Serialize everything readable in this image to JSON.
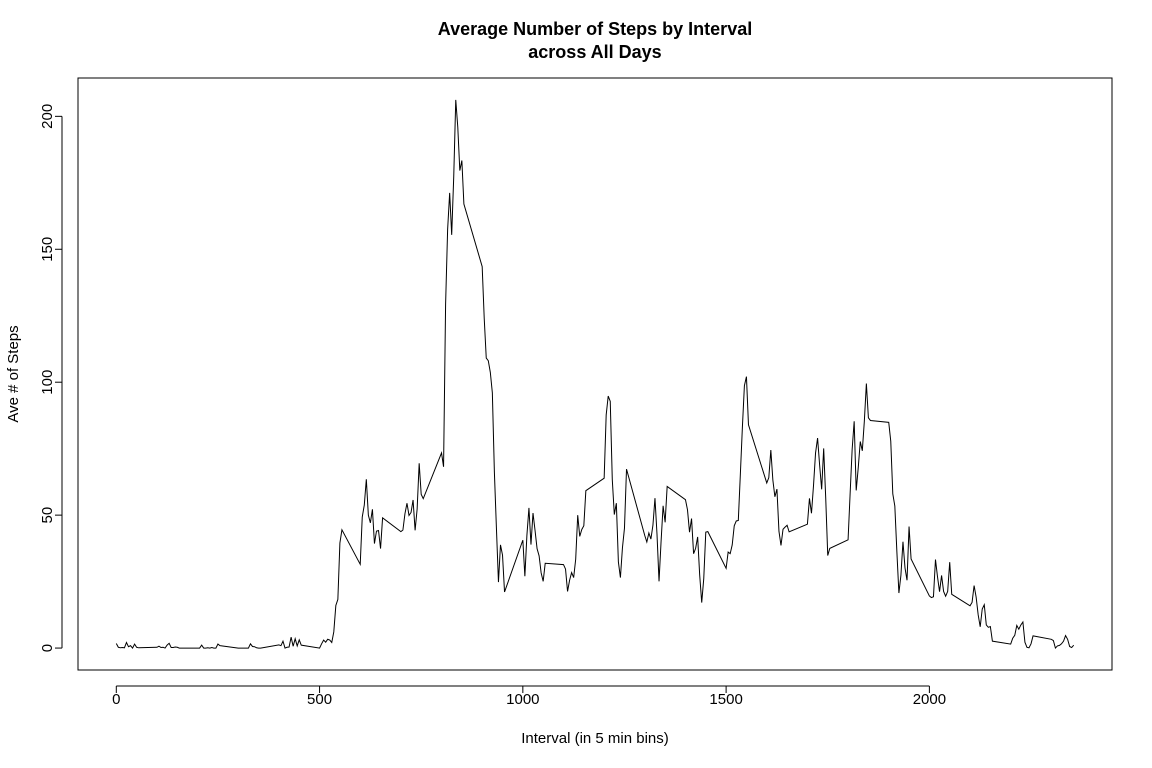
{
  "chart_data": {
    "type": "line",
    "title": [
      "Average Number of Steps by Interval",
      "across All Days"
    ],
    "x_label": "Interval (in 5 min bins)",
    "y_label": "Ave # of Steps",
    "color": "#000000",
    "xlim": [
      -94.2,
      2449.2
    ],
    "ylim": [
      -8.25,
      214.42
    ],
    "xticks": [
      0,
      500,
      1000,
      1500,
      2000
    ],
    "yticks": [
      0,
      50,
      100,
      150,
      200
    ],
    "x": [
      0,
      5,
      10,
      15,
      20,
      25,
      30,
      35,
      40,
      45,
      50,
      55,
      100,
      105,
      110,
      115,
      120,
      125,
      130,
      135,
      140,
      145,
      150,
      155,
      200,
      205,
      210,
      215,
      220,
      225,
      230,
      235,
      240,
      245,
      250,
      255,
      300,
      305,
      310,
      315,
      320,
      325,
      330,
      335,
      340,
      345,
      350,
      355,
      400,
      405,
      410,
      415,
      420,
      425,
      430,
      435,
      440,
      445,
      450,
      455,
      500,
      505,
      510,
      515,
      520,
      525,
      530,
      535,
      540,
      545,
      550,
      555,
      600,
      605,
      610,
      615,
      620,
      625,
      630,
      635,
      640,
      645,
      650,
      655,
      700,
      705,
      710,
      715,
      720,
      725,
      730,
      735,
      740,
      745,
      750,
      755,
      800,
      805,
      810,
      815,
      820,
      825,
      830,
      835,
      840,
      845,
      850,
      855,
      900,
      905,
      910,
      915,
      920,
      925,
      930,
      935,
      940,
      945,
      950,
      955,
      1000,
      1005,
      1010,
      1015,
      1020,
      1025,
      1030,
      1035,
      1040,
      1045,
      1050,
      1055,
      1100,
      1105,
      1110,
      1115,
      1120,
      1125,
      1130,
      1135,
      1140,
      1145,
      1150,
      1155,
      1200,
      1205,
      1210,
      1215,
      1220,
      1225,
      1230,
      1235,
      1240,
      1245,
      1250,
      1255,
      1300,
      1305,
      1310,
      1315,
      1320,
      1325,
      1330,
      1335,
      1340,
      1345,
      1350,
      1355,
      1400,
      1405,
      1410,
      1415,
      1420,
      1425,
      1430,
      1435,
      1440,
      1445,
      1450,
      1455,
      1500,
      1505,
      1510,
      1515,
      1520,
      1525,
      1530,
      1535,
      1540,
      1545,
      1550,
      1555,
      1600,
      1605,
      1610,
      1615,
      1620,
      1625,
      1630,
      1635,
      1640,
      1645,
      1650,
      1655,
      1700,
      1705,
      1710,
      1715,
      1720,
      1725,
      1730,
      1735,
      1740,
      1745,
      1750,
      1755,
      1800,
      1805,
      1810,
      1815,
      1820,
      1825,
      1830,
      1835,
      1840,
      1845,
      1850,
      1855,
      1900,
      1905,
      1910,
      1915,
      1920,
      1925,
      1930,
      1935,
      1940,
      1945,
      1950,
      1955,
      2000,
      2005,
      2010,
      2015,
      2020,
      2025,
      2030,
      2035,
      2040,
      2045,
      2050,
      2055,
      2100,
      2105,
      2110,
      2115,
      2120,
      2125,
      2130,
      2135,
      2140,
      2145,
      2150,
      2155,
      2200,
      2205,
      2210,
      2215,
      2220,
      2225,
      2230,
      2235,
      2240,
      2245,
      2250,
      2255,
      2300,
      2305,
      2310,
      2315,
      2320,
      2325,
      2330,
      2335,
      2340,
      2345,
      2350,
      2355
    ],
    "values": [
      1.7,
      0.3,
      0.1,
      0.2,
      0.1,
      2.1,
      0.5,
      0.9,
      0,
      1.5,
      0.3,
      0.1,
      0.3,
      0.7,
      0.2,
      0.3,
      0,
      1.1,
      1.8,
      0.2,
      0.2,
      0.4,
      0.3,
      0,
      0,
      0,
      1.1,
      0,
      0,
      0.1,
      0,
      0.2,
      0,
      0,
      1.5,
      0.9,
      0,
      0,
      0,
      0,
      0,
      0,
      1.6,
      0.6,
      0.5,
      0.1,
      0,
      0,
      1.2,
      0.9,
      2.6,
      0,
      0.3,
      0.4,
      4.1,
      0.7,
      3.5,
      0.8,
      3.1,
      1.1,
      0,
      1.6,
      3.0,
      2.2,
      3.3,
      3.0,
      2.1,
      6.1,
      16.0,
      18.3,
      39.5,
      44.5,
      31.5,
      49.3,
      53.8,
      63.5,
      50,
      47.1,
      52.2,
      39.3,
      44.0,
      44.2,
      37.4,
      49.0,
      43.8,
      44.4,
      50.5,
      54.5,
      49.9,
      51,
      55.7,
      44.3,
      52.3,
      69.5,
      57.8,
      56.2,
      73.4,
      68.2,
      129.4,
      157.5,
      171.2,
      155.4,
      177.3,
      206.2,
      195.9,
      179.6,
      183.4,
      167,
      143.5,
      124,
      109.1,
      108.1,
      103.7,
      96,
      66.2,
      45.2,
      24.8,
      38.8,
      35,
      21.1,
      40.6,
      27,
      42.4,
      52.7,
      38.9,
      50.8,
      44.3,
      37.4,
      34.7,
      28.3,
      25.1,
      31.9,
      31.4,
      29.7,
      21.3,
      25.5,
      28.4,
      26.5,
      33.4,
      50,
      42,
      44.6,
      46,
      59.2,
      63.9,
      87.7,
      94.8,
      92.8,
      63.4,
      50.2,
      54.5,
      32.4,
      26.5,
      37.7,
      45.1,
      67.3,
      42.3,
      39.9,
      43.3,
      41,
      46.2,
      56.4,
      42.8,
      25.1,
      40,
      53.5,
      47.3,
      60.8,
      55.8,
      52,
      43.6,
      48.7,
      35.5,
      37.5,
      41.8,
      27.5,
      17.1,
      26.1,
      43.6,
      43.8,
      30,
      36.1,
      35.5,
      38.8,
      46,
      47.8,
      48,
      65.3,
      82.9,
      98.7,
      102.1,
      84,
      62.1,
      64.1,
      74.5,
      63.2,
      56.9,
      59.8,
      43.9,
      38.6,
      44.7,
      45.5,
      46.2,
      43.7,
      46.6,
      56.3,
      50.7,
      61.2,
      73.4,
      79,
      68.9,
      59.7,
      75.1,
      56.5,
      34.8,
      37.5,
      40.7,
      58,
      74.7,
      85.3,
      59.3,
      67.8,
      77.7,
      74.2,
      85.3,
      99.5,
      86.6,
      85.6,
      84.9,
      77.8,
      58,
      53.4,
      36.3,
      20.7,
      27.4,
      40,
      30.2,
      25.5,
      45.7,
      33.5,
      19.6,
      19,
      19.3,
      33.3,
      26.8,
      21.2,
      27.3,
      21.3,
      19.5,
      21.3,
      32.3,
      20.2,
      15.9,
      17.2,
      23.5,
      19.2,
      12.5,
      8,
      14.7,
      16.3,
      8.7,
      7.8,
      8.1,
      2.6,
      1.5,
      3.7,
      4.8,
      8.5,
      7.1,
      8.7,
      9.8,
      2.2,
      0.3,
      0.1,
      1.6,
      4.6,
      3.3,
      2.8,
      0,
      0.8,
      1,
      1.6,
      2.6,
      4.7,
      3.3,
      0.6,
      0.2,
      1.1
    ]
  }
}
